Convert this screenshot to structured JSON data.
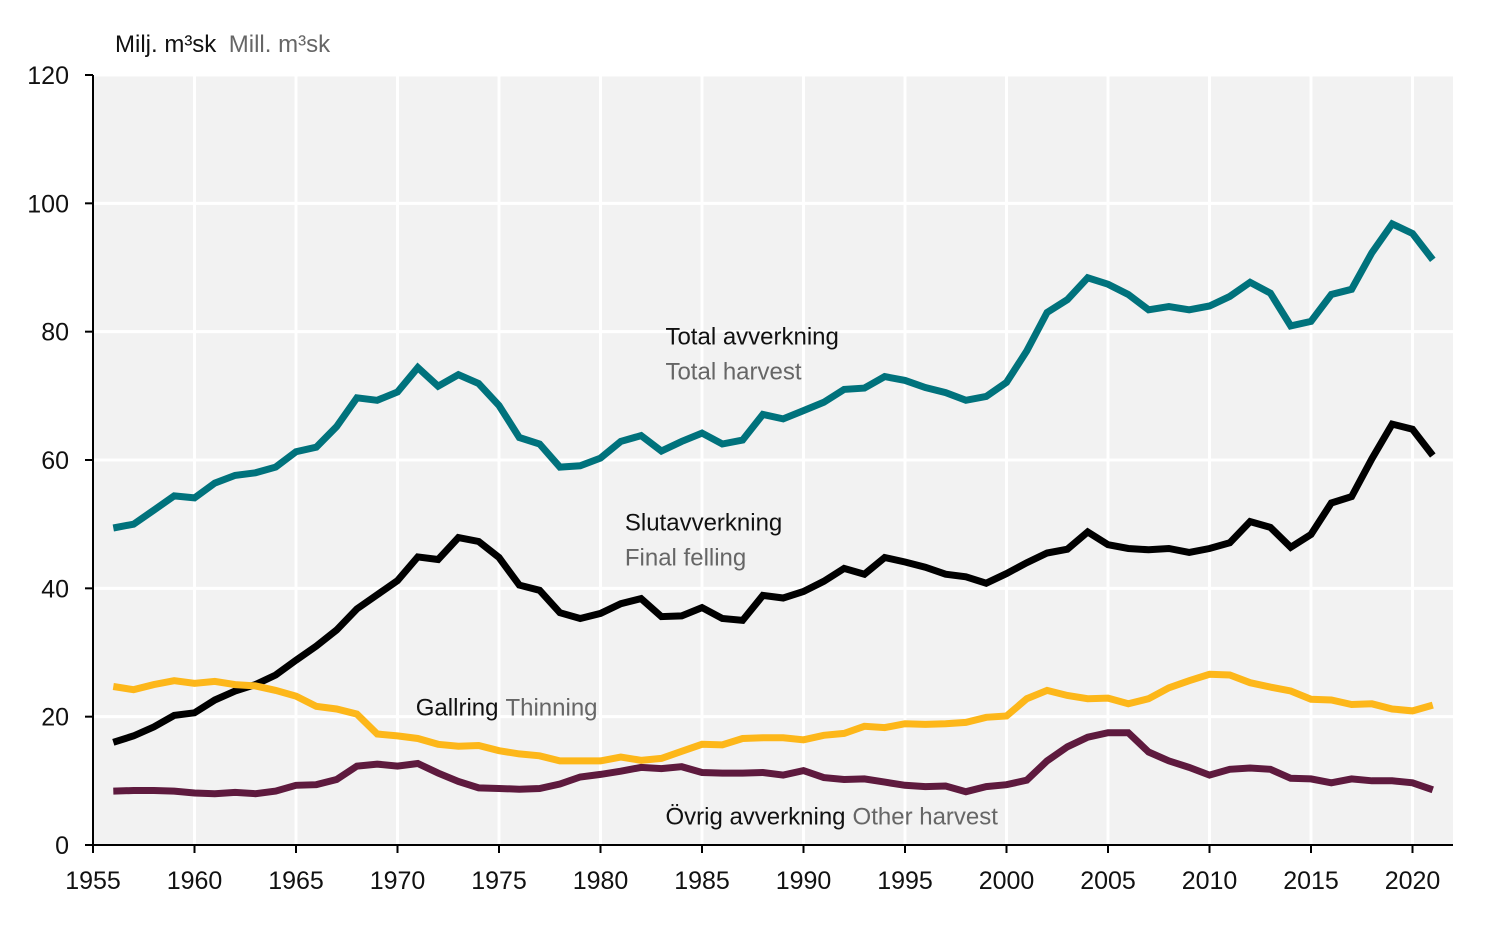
{
  "chart_data": {
    "type": "line",
    "title": "",
    "unit_label": {
      "primary": "Milj. m³sk",
      "secondary": "Mill. m³sk"
    },
    "xlabel": "",
    "ylabel": "Milj. m³sk / Mill. m³sk",
    "xlim": [
      1955,
      2022
    ],
    "ylim": [
      0,
      120
    ],
    "xticks": [
      1955,
      1960,
      1965,
      1970,
      1975,
      1980,
      1985,
      1990,
      1995,
      2000,
      2005,
      2010,
      2015,
      2020
    ],
    "yticks": [
      0,
      20,
      40,
      60,
      80,
      100,
      120
    ],
    "grid": true,
    "background": "#f2f2f2",
    "x": [
      1956,
      1957,
      1958,
      1959,
      1960,
      1961,
      1962,
      1963,
      1964,
      1965,
      1966,
      1967,
      1968,
      1969,
      1970,
      1971,
      1972,
      1973,
      1974,
      1975,
      1976,
      1977,
      1978,
      1979,
      1980,
      1981,
      1982,
      1983,
      1984,
      1985,
      1986,
      1987,
      1988,
      1989,
      1990,
      1991,
      1992,
      1993,
      1994,
      1995,
      1996,
      1997,
      1998,
      1999,
      2000,
      2001,
      2002,
      2003,
      2004,
      2005,
      2006,
      2007,
      2008,
      2009,
      2010,
      2011,
      2012,
      2013,
      2014,
      2015,
      2016,
      2017,
      2018,
      2019,
      2020,
      2021
    ],
    "series": [
      {
        "name": "Total avverkning / Total harvest",
        "key": "total",
        "color": "#00727c",
        "values": [
          49.4,
          50.0,
          52.2,
          54.4,
          54.1,
          56.4,
          57.6,
          58.0,
          58.9,
          61.3,
          62.0,
          65.2,
          69.7,
          69.3,
          70.6,
          74.4,
          71.5,
          73.3,
          71.9,
          68.5,
          63.5,
          62.5,
          58.9,
          59.1,
          60.3,
          62.9,
          63.8,
          61.4,
          62.9,
          64.2,
          62.5,
          63.1,
          67.1,
          66.4,
          67.7,
          69.0,
          71.0,
          71.2,
          73.0,
          72.4,
          71.3,
          70.5,
          69.3,
          69.9,
          72.1,
          77.0,
          83.0,
          85.0,
          88.4,
          87.4,
          85.8,
          83.4,
          83.9,
          83.4,
          84.0,
          85.5,
          87.7,
          86.0,
          80.9,
          81.6,
          85.8,
          86.6,
          92.3,
          96.8,
          95.3,
          91.2
        ]
      },
      {
        "name": "Slutavverkning / Final felling",
        "key": "final",
        "color": "#000000",
        "values": [
          16.0,
          17.0,
          18.4,
          20.2,
          20.6,
          22.6,
          24.0,
          25.0,
          26.5,
          28.8,
          31.0,
          33.5,
          36.8,
          39.0,
          41.2,
          44.9,
          44.5,
          47.9,
          47.3,
          44.8,
          40.5,
          39.7,
          36.2,
          35.3,
          36.1,
          37.6,
          38.4,
          35.6,
          35.7,
          37.0,
          35.3,
          35.0,
          38.9,
          38.5,
          39.5,
          41.1,
          43.1,
          42.2,
          44.8,
          44.1,
          43.3,
          42.2,
          41.8,
          40.8,
          42.3,
          44.0,
          45.5,
          46.1,
          48.8,
          46.8,
          46.2,
          46.0,
          46.2,
          45.6,
          46.2,
          47.1,
          50.4,
          49.5,
          46.4,
          48.4,
          53.3,
          54.3,
          60.2,
          65.6,
          64.8,
          60.7
        ]
      },
      {
        "name": "Gallring / Thinning",
        "key": "thinning",
        "color": "#fdb71a",
        "values": [
          24.7,
          24.2,
          25.0,
          25.6,
          25.2,
          25.5,
          25.0,
          24.8,
          24.1,
          23.2,
          21.6,
          21.2,
          20.4,
          17.3,
          17.0,
          16.6,
          15.7,
          15.4,
          15.5,
          14.7,
          14.2,
          13.9,
          13.1,
          13.1,
          13.1,
          13.7,
          13.2,
          13.5,
          14.6,
          15.7,
          15.6,
          16.6,
          16.7,
          16.7,
          16.4,
          17.1,
          17.4,
          18.5,
          18.3,
          18.9,
          18.8,
          18.9,
          19.1,
          19.9,
          20.1,
          22.8,
          24.1,
          23.3,
          22.8,
          22.9,
          22.0,
          22.8,
          24.5,
          25.6,
          26.6,
          26.5,
          25.3,
          24.6,
          24.0,
          22.7,
          22.6,
          21.9,
          22.0,
          21.2,
          20.9,
          21.8
        ]
      },
      {
        "name": "Övrig avverkning / Other harvest",
        "key": "other",
        "color": "#5e1a3e",
        "values": [
          8.4,
          8.5,
          8.5,
          8.4,
          8.1,
          8.0,
          8.2,
          8.0,
          8.4,
          9.3,
          9.4,
          10.2,
          12.3,
          12.6,
          12.3,
          12.7,
          11.2,
          9.9,
          8.9,
          8.8,
          8.7,
          8.8,
          9.5,
          10.6,
          11.0,
          11.5,
          12.1,
          11.9,
          12.2,
          11.3,
          11.2,
          11.2,
          11.3,
          10.9,
          11.6,
          10.5,
          10.2,
          10.3,
          9.8,
          9.3,
          9.1,
          9.2,
          8.3,
          9.1,
          9.4,
          10.1,
          13.1,
          15.3,
          16.8,
          17.5,
          17.5,
          14.5,
          13.1,
          12.1,
          10.9,
          11.8,
          12.0,
          11.8,
          10.4,
          10.3,
          9.7,
          10.3,
          10.0,
          10.0,
          9.7,
          8.6
        ]
      }
    ],
    "annotations": [
      {
        "series": "total",
        "primary": "Total avverkning",
        "secondary": "Total harvest",
        "stacked": true,
        "at": [
          1983.2,
          78
        ]
      },
      {
        "series": "final",
        "primary": "Slutavverkning",
        "secondary": "Final felling",
        "stacked": true,
        "at": [
          1981.2,
          49
        ]
      },
      {
        "series": "thinning",
        "primary": "Gallring",
        "secondary": "Thinning",
        "stacked": false,
        "at": [
          1970.9,
          20.2
        ]
      },
      {
        "series": "other",
        "primary": "Övrig avverkning",
        "secondary": "Other harvest",
        "stacked": false,
        "at": [
          1983.2,
          3.2
        ]
      }
    ],
    "legend": "none (inline labels)"
  }
}
